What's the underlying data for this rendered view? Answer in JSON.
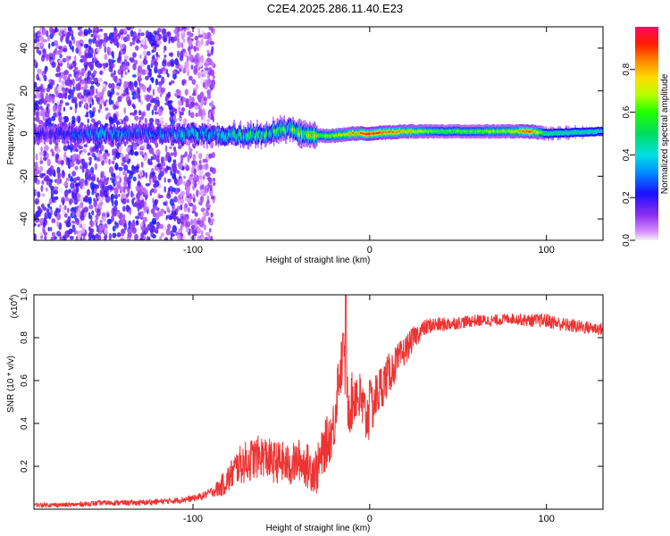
{
  "title": "C2E4.2025.286.11.40.E23",
  "chart_data": [
    {
      "type": "heatmap",
      "xlabel": "Height of straight line (km)",
      "ylabel": "Frequency (Hz)",
      "xlim": [
        -190,
        132
      ],
      "ylim": [
        -50,
        50
      ],
      "xticks": [
        -100,
        0,
        100
      ],
      "xtick_labels": [
        "-100",
        "0",
        "100"
      ],
      "yticks": [
        -40,
        -20,
        0,
        20,
        40
      ],
      "ytick_labels": [
        "-40",
        "-20",
        "0",
        "20",
        "40"
      ],
      "grid": false,
      "colorbar": {
        "label": "Normalized spectral amplitude",
        "range": [
          0,
          1
        ],
        "ticks": [
          0.0,
          0.2,
          0.4,
          0.6,
          0.8
        ],
        "tick_labels": [
          "0.0",
          "0.2",
          "0.4",
          "0.6",
          "0.8"
        ]
      },
      "ridge_center_hz": {
        "x": [
          -190,
          -150,
          -100,
          -80,
          -70,
          -60,
          -50,
          -45,
          -40,
          -30,
          -20,
          -10,
          0,
          20,
          60,
          90,
          100,
          132
        ],
        "y": [
          0,
          0,
          0,
          -1,
          -1,
          0,
          2,
          2,
          0,
          -1,
          -1,
          0,
          0,
          1,
          1,
          1,
          0,
          1
        ]
      },
      "ridge_peak_amplitude": {
        "x": [
          -190,
          -150,
          -120,
          -100,
          -80,
          -60,
          -40,
          -20,
          0,
          20,
          40,
          60,
          80,
          90,
          100,
          132
        ],
        "y": [
          0.15,
          0.3,
          0.25,
          0.35,
          0.4,
          0.45,
          0.55,
          0.7,
          0.95,
          0.8,
          0.6,
          0.62,
          0.7,
          0.95,
          0.5,
          0.45
        ]
      },
      "noise_region_km": [
        -190,
        -88
      ]
    },
    {
      "type": "line",
      "xlabel": "Height of straight line (km)",
      "ylabel": "SNR (10 * v/v)",
      "y_multiplier": "(x10",
      "y_multiplier_exp": "4",
      "y_multiplier_close": ")",
      "xlim": [
        -190,
        132
      ],
      "ylim": [
        0,
        1.0
      ],
      "xticks": [
        -100,
        0,
        100
      ],
      "xtick_labels": [
        "-100",
        "0",
        "100"
      ],
      "yticks": [
        0.2,
        0.4,
        0.6,
        0.8,
        1.0
      ],
      "ytick_labels": [
        "0.2",
        "0.4",
        "0.6",
        "0.8",
        "1.0"
      ],
      "grid": false,
      "series": [
        {
          "name": "SNR",
          "color": "#ee3333",
          "x": [
            -190,
            -170,
            -150,
            -130,
            -110,
            -100,
            -95,
            -90,
            -85,
            -80,
            -75,
            -70,
            -65,
            -60,
            -55,
            -50,
            -45,
            -40,
            -35,
            -30,
            -25,
            -22,
            -20,
            -18,
            -15,
            -12,
            -10,
            -8,
            -5,
            -2,
            0,
            5,
            10,
            15,
            20,
            25,
            30,
            35,
            40,
            50,
            60,
            70,
            80,
            90,
            100,
            110,
            120,
            132
          ],
          "y": [
            0.02,
            0.02,
            0.03,
            0.03,
            0.04,
            0.05,
            0.06,
            0.08,
            0.1,
            0.14,
            0.2,
            0.22,
            0.24,
            0.25,
            0.22,
            0.22,
            0.2,
            0.23,
            0.2,
            0.18,
            0.3,
            0.35,
            0.4,
            0.6,
            0.7,
            0.48,
            0.5,
            0.55,
            0.5,
            0.42,
            0.45,
            0.55,
            0.62,
            0.68,
            0.74,
            0.8,
            0.84,
            0.86,
            0.86,
            0.87,
            0.88,
            0.88,
            0.89,
            0.88,
            0.88,
            0.86,
            0.85,
            0.84
          ],
          "spikes": [
            {
              "x": -13.5,
              "y": 1.0
            },
            {
              "x": -15,
              "y": 0.82
            },
            {
              "x": 0,
              "y": 0.6
            }
          ],
          "noise_amplitude": {
            "x": [
              -190,
              -100,
              -90,
              -80,
              -70,
              -60,
              -40,
              -25,
              -10,
              0,
              10,
              20,
              30,
              50,
              80,
              100,
              132
            ],
            "y": [
              0.01,
              0.015,
              0.02,
              0.07,
              0.1,
              0.1,
              0.1,
              0.12,
              0.14,
              0.13,
              0.1,
              0.07,
              0.04,
              0.03,
              0.025,
              0.035,
              0.03
            ]
          }
        }
      ]
    }
  ]
}
